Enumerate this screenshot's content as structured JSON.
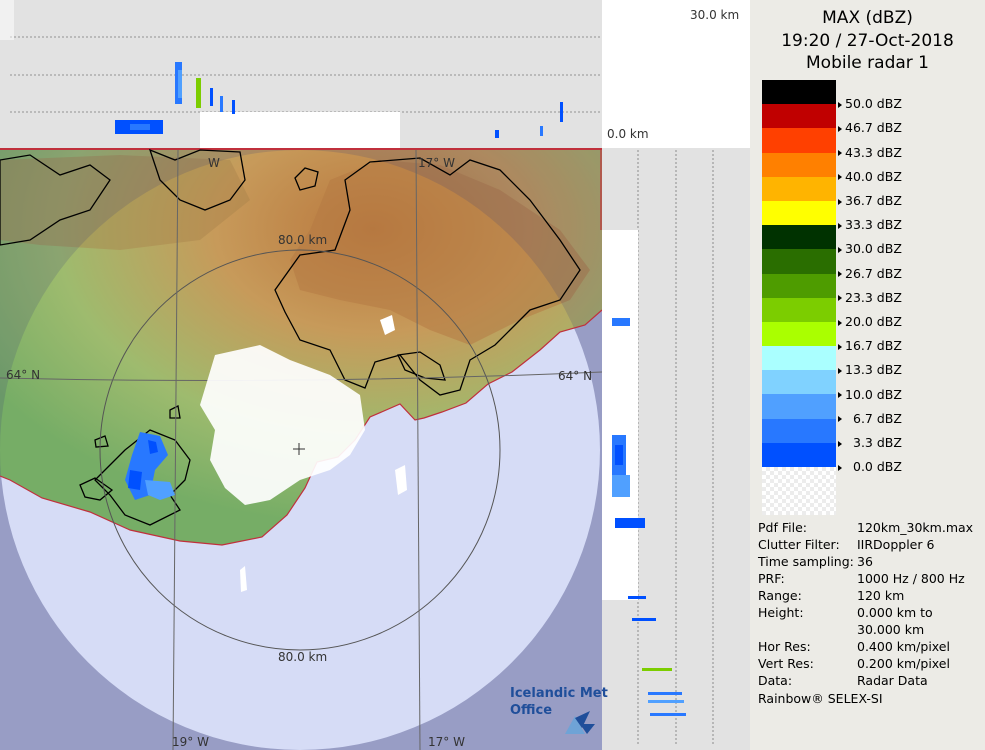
{
  "product": {
    "title": "MAX (dBZ)",
    "datetime": "19:20 / 27-Oct-2018",
    "radar": "Mobile radar 1"
  },
  "colorbar": [
    {
      "label": "50.0 dBZ",
      "color": "#000000"
    },
    {
      "label": "46.7 dBZ",
      "color": "#c00000"
    },
    {
      "label": "43.3 dBZ",
      "color": "#ff4000"
    },
    {
      "label": "40.0 dBZ",
      "color": "#ff8000"
    },
    {
      "label": "36.7 dBZ",
      "color": "#ffb400"
    },
    {
      "label": "33.3 dBZ",
      "color": "#ffff00"
    },
    {
      "label": "30.0 dBZ",
      "color": "#003200"
    },
    {
      "label": "26.7 dBZ",
      "color": "#2a6e00"
    },
    {
      "label": "23.3 dBZ",
      "color": "#4e9c00"
    },
    {
      "label": "20.0 dBZ",
      "color": "#7ccd00"
    },
    {
      "label": "16.7 dBZ",
      "color": "#aaff00"
    },
    {
      "label": "13.3 dBZ",
      "color": "#aaffff"
    },
    {
      "label": "10.0 dBZ",
      "color": "#80d2ff"
    },
    {
      "label": "6.7 dBZ",
      "color": "#50a0ff"
    },
    {
      "label": "3.3 dBZ",
      "color": "#2878ff"
    },
    {
      "label": "0.0 dBZ",
      "color": "#0050ff"
    }
  ],
  "info": [
    {
      "key": "Pdf File:",
      "value": "120km_30km.max"
    },
    {
      "key": "Clutter Filter:",
      "value": "IIRDoppler 6"
    },
    {
      "key": "Time sampling:",
      "value": "36"
    },
    {
      "key": "PRF:",
      "value": "1000 Hz / 800 Hz"
    },
    {
      "key": "Range:",
      "value": "120 km"
    },
    {
      "key": "Height:",
      "value": "0.000 km to"
    },
    {
      "key": "",
      "value": "30.000 km"
    },
    {
      "key": "Hor Res:",
      "value": "0.400 km/pixel"
    },
    {
      "key": "Vert Res:",
      "value": "0.200 km/pixel"
    },
    {
      "key": "Data:",
      "value": "Radar Data"
    }
  ],
  "footer": "Rainbow® SELEX-SI",
  "map_labels": {
    "top_height": "30.0 km",
    "top_zero": "0.0 km",
    "range_ring_top": "80.0 km",
    "range_ring_bottom": "80.0 km",
    "lat_left": "64° N",
    "lat_right": "64° N",
    "lon_top_left": "W",
    "lon_top_right": "17° W",
    "lon_bottom_left": "19° W",
    "lon_bottom_right": "17° W"
  },
  "logo": {
    "line1": "Icelandic Met",
    "line2": "Office"
  },
  "colors": {
    "range_disc": "#d6dcf6",
    "outside_range": "#aeb3d6",
    "terrain_low": "#7fb06a",
    "terrain_high": "#c58a4e",
    "side_panel_bg": "#e2e2e2"
  }
}
